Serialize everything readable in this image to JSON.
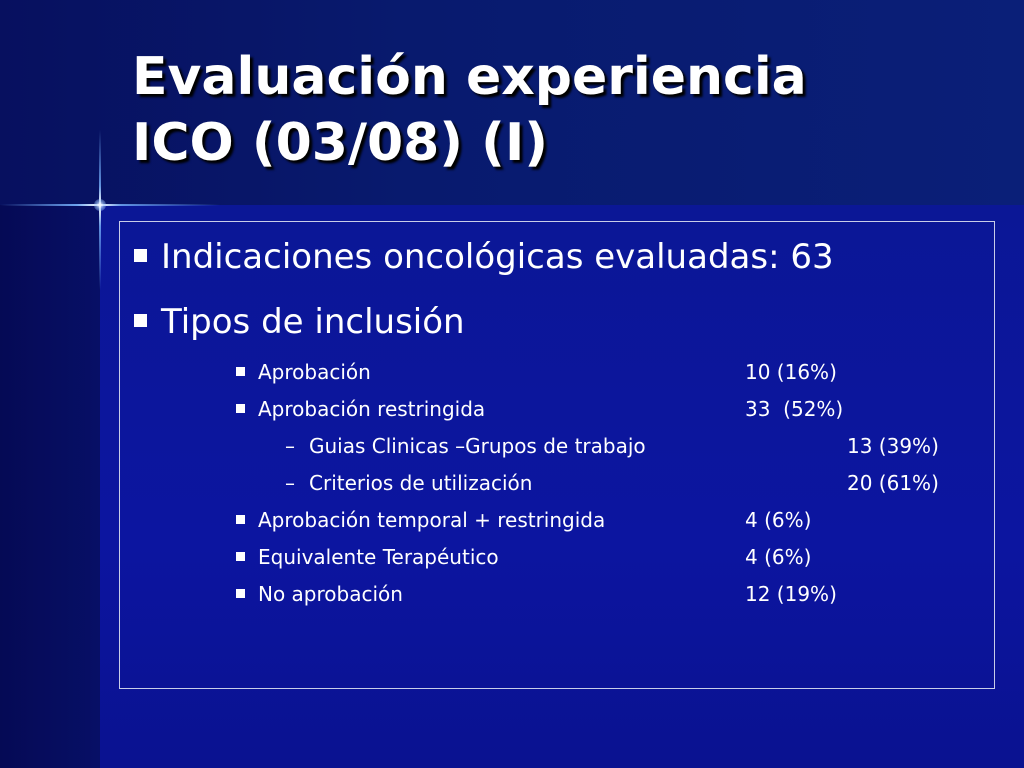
{
  "slide": {
    "title_line1": "Evaluación experiencia",
    "title_line2": "ICO (03/08) (I)",
    "main_points": [
      {
        "label": "Indicaciones oncológicas evaluadas: 63"
      },
      {
        "label": "Tipos de inclusión"
      }
    ],
    "inclusion_types": [
      {
        "label": "Aprobación",
        "value": "10 (16%)"
      },
      {
        "label": "Aprobación restringida",
        "value": "33  (52%)"
      },
      {
        "label": "Aprobación temporal + restringida",
        "value": "4 (6%)"
      },
      {
        "label": "Equivalente Terapéutico",
        "value": "4 (6%)"
      },
      {
        "label": "No aprobación",
        "value": "12 (19%)"
      }
    ],
    "restricted_subtypes": [
      {
        "dash": "–",
        "label": "Guias Clinicas –Grupos de trabajo",
        "value": "13 (39%)"
      },
      {
        "dash": "–",
        "label": "Criterios de utilización",
        "value": "20 (61%)"
      }
    ]
  },
  "colors": {
    "background": "#0a0f78",
    "text": "#ffffff",
    "box_border": "#c8cde8"
  }
}
